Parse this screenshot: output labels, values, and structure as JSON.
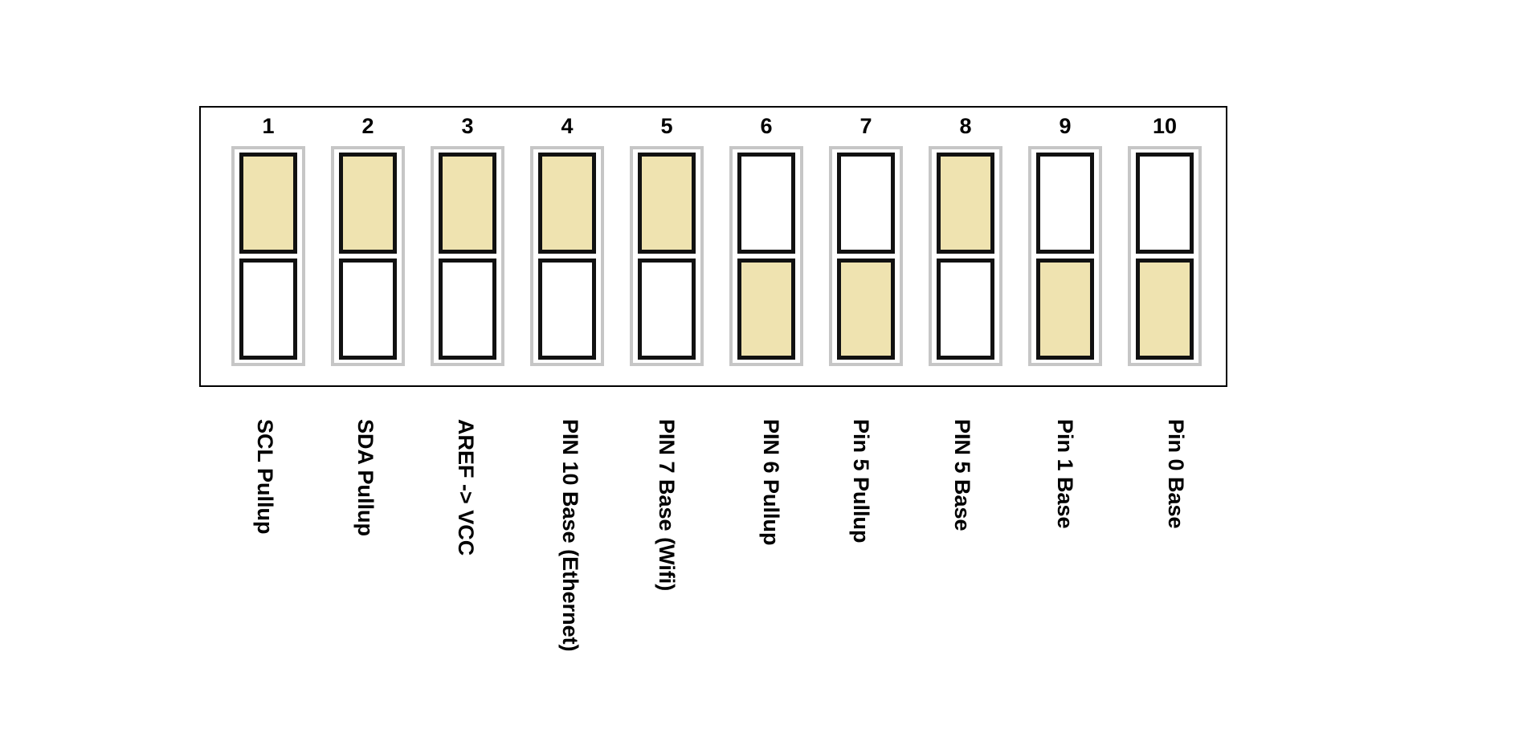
{
  "colors": {
    "on": "#efe3b0",
    "off": "#ffffff",
    "housing": "#c6c6c6",
    "border": "#111111"
  },
  "switches": [
    {
      "number": "1",
      "position": "top",
      "label": "SCL Pullup"
    },
    {
      "number": "2",
      "position": "top",
      "label": "SDA Pullup"
    },
    {
      "number": "3",
      "position": "top",
      "label": "AREF -> VCC"
    },
    {
      "number": "4",
      "position": "top",
      "label": "PIN 10 Base (Ethernet)"
    },
    {
      "number": "5",
      "position": "top",
      "label": "PIN 7 Base (Wifi)"
    },
    {
      "number": "6",
      "position": "bottom",
      "label": "PIN 6 Pullup"
    },
    {
      "number": "7",
      "position": "bottom",
      "label": "Pin 5 Pullup"
    },
    {
      "number": "8",
      "position": "top",
      "label": "PIN 5 Base"
    },
    {
      "number": "9",
      "position": "bottom",
      "label": "Pin 1 Base"
    },
    {
      "number": "10",
      "position": "bottom",
      "label": "Pin 0 Base"
    }
  ]
}
